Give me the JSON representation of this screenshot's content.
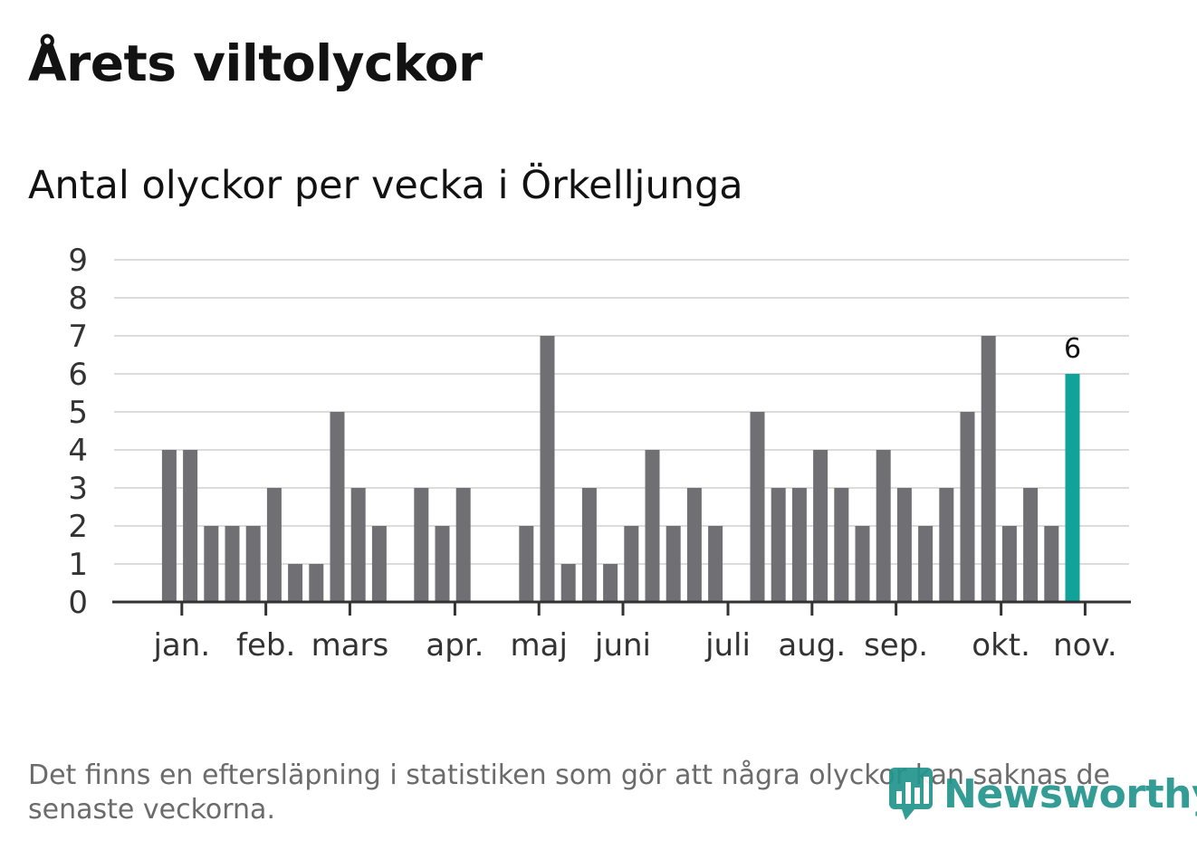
{
  "title": "Årets viltolyckor",
  "subtitle": "Antal olyckor per vecka i Örkelljunga",
  "note": "Det finns en eftersläpning i statistiken som gör att några olyckor kan saknas de senaste veckorna.",
  "logo": {
    "text": "Newsworthy",
    "icon": "newsworthy-bar-chart-badge-icon"
  },
  "colors": {
    "bar": "#707074",
    "highlight": "#10a39a",
    "grid": "#dcdcdc",
    "axis": "#333333",
    "text": "#121212",
    "muted": "#6b6b6b",
    "brand": "#22958d"
  },
  "chart_data": {
    "type": "bar",
    "title": "Antal olyckor per vecka i Örkelljunga",
    "xlabel": "",
    "ylabel": "",
    "ylim": [
      0,
      9
    ],
    "yticks": [
      0,
      1,
      2,
      3,
      4,
      5,
      6,
      7,
      8,
      9
    ],
    "grid": true,
    "weeks": [
      1,
      2,
      3,
      4,
      5,
      6,
      7,
      8,
      9,
      10,
      11,
      12,
      13,
      14,
      15,
      16,
      17,
      18,
      19,
      20,
      21,
      22,
      23,
      24,
      25,
      26,
      27,
      28,
      29,
      30,
      31,
      32,
      33,
      34,
      35,
      36,
      37,
      38,
      39,
      40,
      41,
      42,
      43,
      44,
      45,
      46,
      47,
      48,
      49,
      50,
      51,
      52
    ],
    "values": [
      null,
      null,
      4,
      4,
      2,
      2,
      2,
      3,
      1,
      1,
      5,
      3,
      2,
      null,
      3,
      2,
      3,
      null,
      null,
      2,
      7,
      1,
      3,
      1,
      2,
      4,
      2,
      3,
      2,
      null,
      5,
      3,
      3,
      4,
      3,
      2,
      4,
      3,
      2,
      3,
      5,
      7,
      2,
      3,
      2,
      6,
      null,
      null,
      null,
      null,
      null,
      null
    ],
    "highlight_week": 46,
    "highlight_label": "6",
    "month_labels": [
      "jan.",
      "feb.",
      "mars",
      "apr.",
      "maj",
      "juni",
      "juli",
      "aug.",
      "sep.",
      "okt.",
      "nov."
    ],
    "month_tick_weeks": [
      3.6,
      7.6,
      11.6,
      16.6,
      20.6,
      24.6,
      29.6,
      33.6,
      37.6,
      42.6,
      46.6
    ]
  }
}
